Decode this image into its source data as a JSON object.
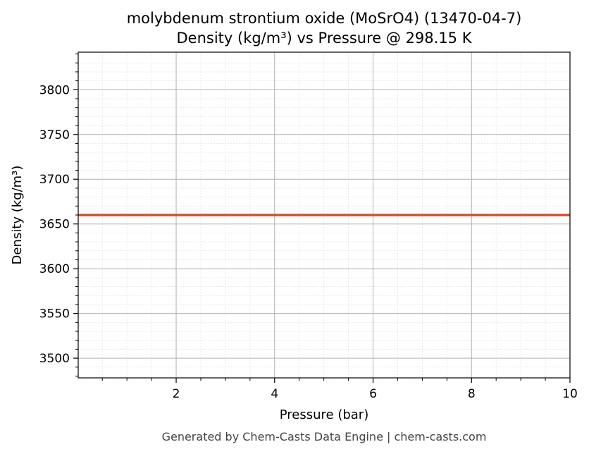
{
  "chart_data": {
    "type": "line",
    "title": "molybdenum strontium oxide (MoSrO4) (13470-04-7)",
    "subtitle": "Density (kg/m³) vs Pressure @ 298.15 K",
    "xlabel": "Pressure (bar)",
    "ylabel": "Density (kg/m³)",
    "xlim": [
      0.01,
      10
    ],
    "ylim": [
      3478,
      3842
    ],
    "x_ticks": [
      2,
      4,
      6,
      8,
      10
    ],
    "y_ticks": [
      3500,
      3550,
      3600,
      3650,
      3700,
      3750,
      3800
    ],
    "grid": true,
    "minor_grid": true,
    "series": [
      {
        "color": "#c8552b",
        "x": [
          0.01,
          10
        ],
        "y": [
          3660,
          3660
        ]
      }
    ]
  },
  "footer": "Generated by Chem-Casts Data Engine | chem-casts.com"
}
